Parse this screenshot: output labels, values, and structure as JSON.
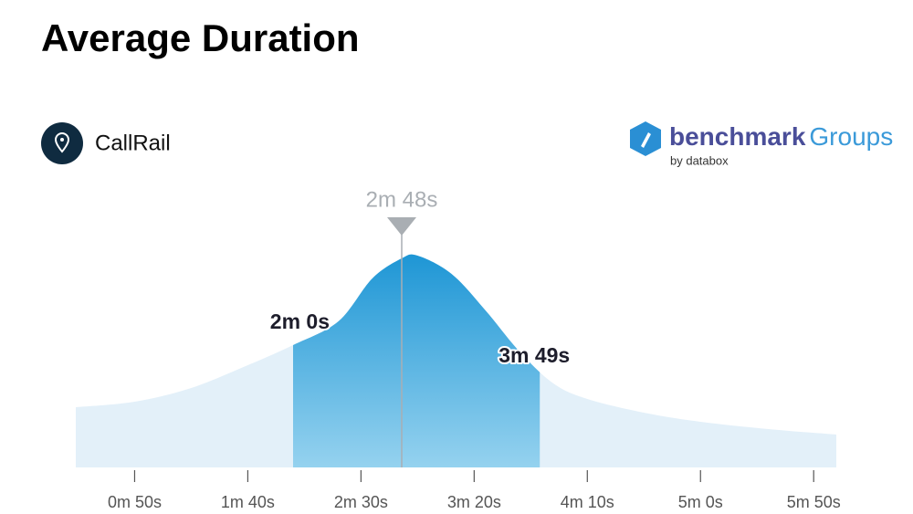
{
  "chart_data": {
    "type": "density",
    "title": "Average Duration",
    "curve": {
      "x": [
        24,
        50,
        75,
        100,
        120,
        140,
        155,
        168,
        175,
        190,
        205,
        220,
        235,
        250,
        275,
        300,
        330,
        360
      ],
      "values": [
        66,
        72,
        87,
        112,
        134,
        160,
        207,
        229,
        232,
        212,
        172,
        127,
        92,
        75,
        60,
        50,
        42,
        36
      ]
    },
    "markers": [
      {
        "value": 120,
        "label": "2m 0s"
      },
      {
        "value": 168,
        "label": "2m 48s"
      },
      {
        "value": 229,
        "label": "3m 49s"
      }
    ],
    "xlim": [
      24,
      360
    ],
    "ylim": [
      0,
      250
    ],
    "xticks": [
      {
        "value": 50,
        "label": "0m 50s"
      },
      {
        "value": 100,
        "label": "1m 40s"
      },
      {
        "value": 150,
        "label": "2m 30s"
      },
      {
        "value": 200,
        "label": "3m 20s"
      },
      {
        "value": 250,
        "label": "4m 10s"
      },
      {
        "value": 300,
        "label": "5m 0s"
      },
      {
        "value": 350,
        "label": "5m 50s"
      }
    ],
    "colors": {
      "outer": "#e3f0f9",
      "band_top": "#1e96d5",
      "band_bottom": "#95d2ef",
      "median": "#a9aeb3"
    }
  },
  "source": "CallRail",
  "brand": {
    "name": "benchmark",
    "suffix": "Groups",
    "by": "by databox"
  }
}
